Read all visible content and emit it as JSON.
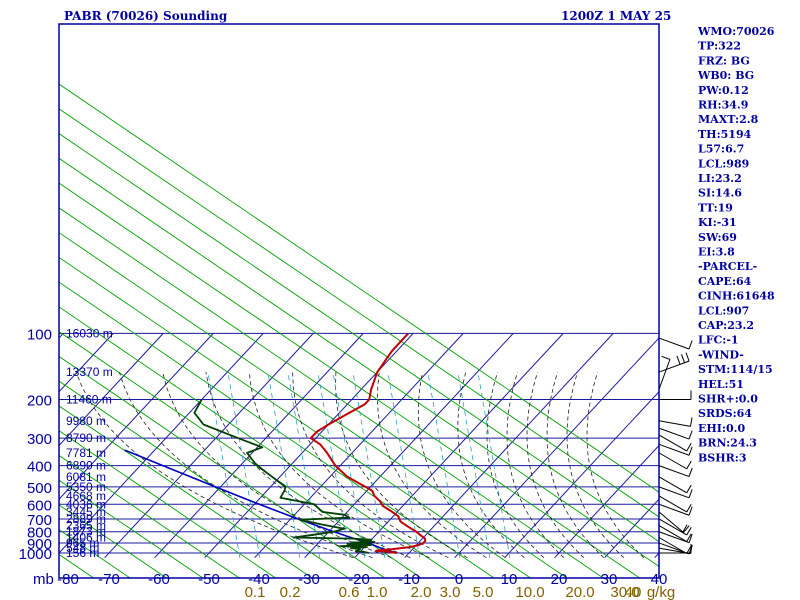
{
  "header": {
    "title": "PABR (70026) Sounding",
    "datetime": "1200Z  1 MAY 25"
  },
  "colors": {
    "axis_blue": "#0000a0",
    "grid_blue": "#1a1aa0",
    "dry_adiabat": "#00a000",
    "moist_adiabat": "#202020",
    "mixing_ratio": "#30a0c0",
    "temperature": "#c00000",
    "dewpoint": "#004000",
    "parcel": "#0000c0",
    "mixing_label": "#806000"
  },
  "chart_data": {
    "type": "line",
    "diagram": "skew-t log-p",
    "x_axis": {
      "unit_label": "mb",
      "ticks": [
        -80,
        -70,
        -60,
        -50,
        -40,
        -30,
        -20,
        -10,
        0,
        10,
        20,
        30,
        40
      ],
      "tick_labels": [
        "-80",
        "-70",
        "-60",
        "-50",
        "-40",
        "-30",
        "-20",
        "-10",
        "0",
        "10",
        "20",
        "30",
        "40"
      ],
      "range": [
        -80,
        40
      ]
    },
    "y_axis": {
      "scale": "log",
      "ticks": [
        100,
        200,
        300,
        400,
        500,
        600,
        700,
        800,
        900,
        1000
      ],
      "tick_labels": [
        "100",
        "200",
        "300",
        "400",
        "500",
        "600",
        "700",
        "800",
        "900",
        "1000"
      ],
      "range": [
        100,
        1050
      ]
    },
    "height_labels": [
      {
        "p": 100,
        "label": "16030 m"
      },
      {
        "p": 150,
        "label": "13370 m"
      },
      {
        "p": 200,
        "label": "11460 m"
      },
      {
        "p": 250,
        "label": "9980 m"
      },
      {
        "p": 300,
        "label": "8790 m"
      },
      {
        "p": 350,
        "label": "7781 m"
      },
      {
        "p": 400,
        "label": "6890 m"
      },
      {
        "p": 450,
        "label": "6081 m"
      },
      {
        "p": 500,
        "label": "5350 m"
      },
      {
        "p": 550,
        "label": "4668 m"
      },
      {
        "p": 600,
        "label": "4036 m"
      },
      {
        "p": 650,
        "label": "3445 m"
      },
      {
        "p": 700,
        "label": "2889 m"
      },
      {
        "p": 750,
        "label": "2365 m"
      },
      {
        "p": 800,
        "label": "1873 m"
      },
      {
        "p": 850,
        "label": "1406 m"
      },
      {
        "p": 900,
        "label": "965 m"
      },
      {
        "p": 950,
        "label": "548 m"
      },
      {
        "p": 1000,
        "label": "156 m"
      }
    ],
    "mixing_ratio_labels": [
      "0.1",
      "0.2",
      "0.6",
      "1.0",
      "2.0",
      "3.0",
      "5.0",
      "10.0",
      "20.0",
      "30.0",
      "40",
      "g/kg"
    ],
    "mixing_ratio_values": [
      0.1,
      0.2,
      0.6,
      1.0,
      2.0,
      3.0,
      5.0,
      10.0,
      20.0,
      30.0,
      40
    ],
    "temperature": [
      {
        "p": 1000,
        "t": -12.5
      },
      {
        "p": 985,
        "t": -14.5
      },
      {
        "p": 980,
        "t": -16.5
      },
      {
        "p": 975,
        "t": -17.0
      },
      {
        "p": 960,
        "t": -14.0
      },
      {
        "p": 940,
        "t": -11.0
      },
      {
        "p": 920,
        "t": -9.5
      },
      {
        "p": 900,
        "t": -9.0
      },
      {
        "p": 880,
        "t": -9.0
      },
      {
        "p": 860,
        "t": -9.5
      },
      {
        "p": 830,
        "t": -11.0
      },
      {
        "p": 800,
        "t": -12.5
      },
      {
        "p": 760,
        "t": -15.0
      },
      {
        "p": 720,
        "t": -17.5
      },
      {
        "p": 680,
        "t": -19.0
      },
      {
        "p": 650,
        "t": -21.0
      },
      {
        "p": 610,
        "t": -24.0
      },
      {
        "p": 580,
        "t": -25.5
      },
      {
        "p": 550,
        "t": -27.5
      },
      {
        "p": 520,
        "t": -29.0
      },
      {
        "p": 500,
        "t": -31.0
      },
      {
        "p": 450,
        "t": -36.5
      },
      {
        "p": 400,
        "t": -41.0
      },
      {
        "p": 350,
        "t": -45.0
      },
      {
        "p": 320,
        "t": -48.0
      },
      {
        "p": 300,
        "t": -51.0
      },
      {
        "p": 280,
        "t": -51.0
      },
      {
        "p": 260,
        "t": -50.0
      },
      {
        "p": 230,
        "t": -48.0
      },
      {
        "p": 210,
        "t": -46.5
      },
      {
        "p": 200,
        "t": -46.5
      },
      {
        "p": 180,
        "t": -48.0
      },
      {
        "p": 150,
        "t": -50.0
      },
      {
        "p": 120,
        "t": -51.0
      },
      {
        "p": 100,
        "t": -51.0
      }
    ],
    "dewpoint": [
      {
        "p": 1000,
        "t": -18.0
      },
      {
        "p": 985,
        "t": -19.5
      },
      {
        "p": 980,
        "t": -21.0
      },
      {
        "p": 960,
        "t": -20.5
      },
      {
        "p": 950,
        "t": -22.5
      },
      {
        "p": 940,
        "t": -19.5
      },
      {
        "p": 930,
        "t": -25.0
      },
      {
        "p": 920,
        "t": -19.0
      },
      {
        "p": 910,
        "t": -24.0
      },
      {
        "p": 900,
        "t": -20.0
      },
      {
        "p": 895,
        "t": -23.5
      },
      {
        "p": 890,
        "t": -19.0
      },
      {
        "p": 880,
        "t": -22.0
      },
      {
        "p": 870,
        "t": -20.0
      },
      {
        "p": 860,
        "t": -24.0
      },
      {
        "p": 850,
        "t": -36.0
      },
      {
        "p": 830,
        "t": -33.0
      },
      {
        "p": 800,
        "t": -29.0
      },
      {
        "p": 775,
        "t": -27.5
      },
      {
        "p": 740,
        "t": -33.0
      },
      {
        "p": 705,
        "t": -38.0
      },
      {
        "p": 690,
        "t": -28.5
      },
      {
        "p": 670,
        "t": -30.0
      },
      {
        "p": 650,
        "t": -35.0
      },
      {
        "p": 600,
        "t": -38.0
      },
      {
        "p": 560,
        "t": -46.0
      },
      {
        "p": 520,
        "t": -46.5
      },
      {
        "p": 500,
        "t": -47.0
      },
      {
        "p": 440,
        "t": -52.5
      },
      {
        "p": 410,
        "t": -55.5
      },
      {
        "p": 390,
        "t": -57.5
      },
      {
        "p": 350,
        "t": -61.0
      },
      {
        "p": 340,
        "t": -60.0
      },
      {
        "p": 330,
        "t": -59.0
      },
      {
        "p": 300,
        "t": -65.5
      },
      {
        "p": 260,
        "t": -75.0
      },
      {
        "p": 230,
        "t": -79.0
      },
      {
        "p": 200,
        "t": -80.0
      }
    ],
    "parcel": [
      {
        "p": 1000,
        "t": -12.5
      },
      {
        "p": 950,
        "t": -16.5
      },
      {
        "p": 907,
        "t": -19.5
      },
      {
        "p": 850,
        "t": -24.5
      },
      {
        "p": 800,
        "t": -29.0
      },
      {
        "p": 700,
        "t": -38.5
      },
      {
        "p": 600,
        "t": -49.0
      },
      {
        "p": 500,
        "t": -61.0
      },
      {
        "p": 400,
        "t": -75.5
      },
      {
        "p": 340,
        "t": -86.0
      }
    ],
    "wind_barbs": [
      {
        "p": 105,
        "dir": 290,
        "spd": 10
      },
      {
        "p": 150,
        "dir": 250,
        "spd": 30
      },
      {
        "p": 180,
        "dir": 200,
        "spd": 10
      },
      {
        "p": 200,
        "dir": 270,
        "spd": 10
      },
      {
        "p": 250,
        "dir": 280,
        "spd": 10
      },
      {
        "p": 270,
        "dir": 290,
        "spd": 5
      },
      {
        "p": 290,
        "dir": 300,
        "spd": 10
      },
      {
        "p": 320,
        "dir": 290,
        "spd": 10
      },
      {
        "p": 350,
        "dir": 300,
        "spd": 10
      },
      {
        "p": 400,
        "dir": 290,
        "spd": 10
      },
      {
        "p": 450,
        "dir": 300,
        "spd": 10
      },
      {
        "p": 500,
        "dir": 290,
        "spd": 10
      },
      {
        "p": 550,
        "dir": 300,
        "spd": 10
      },
      {
        "p": 600,
        "dir": 290,
        "spd": 10
      },
      {
        "p": 650,
        "dir": 310,
        "spd": 10
      },
      {
        "p": 700,
        "dir": 300,
        "spd": 15
      },
      {
        "p": 750,
        "dir": 300,
        "spd": 10
      },
      {
        "p": 800,
        "dir": 290,
        "spd": 10
      },
      {
        "p": 850,
        "dir": 300,
        "spd": 10
      },
      {
        "p": 900,
        "dir": 290,
        "spd": 10
      },
      {
        "p": 950,
        "dir": 280,
        "spd": 10
      },
      {
        "p": 1000,
        "dir": 270,
        "spd": 10
      }
    ]
  },
  "indices": [
    "WMO:70026",
    "TP:322",
    "FRZ: BG",
    "WB0: BG",
    "PW:0.12",
    "RH:34.9",
    "MAXT:2.8",
    "TH:5194",
    "L57:6.7",
    "LCL:989",
    "LI:23.2",
    "SI:14.6",
    "TT:19",
    "KI:-31",
    "SW:69",
    "EI:3.8",
    "-PARCEL-",
    "CAPE:64",
    "CINH:61648",
    "LCL:907",
    "CAP:23.2",
    "LFC:-1",
    "-WIND-",
    "STM:114/15",
    "HEL:51",
    "SHR+:0.0",
    "SRDS:64",
    "EHI:0.0",
    "BRN:24.3",
    "BSHR:3"
  ]
}
